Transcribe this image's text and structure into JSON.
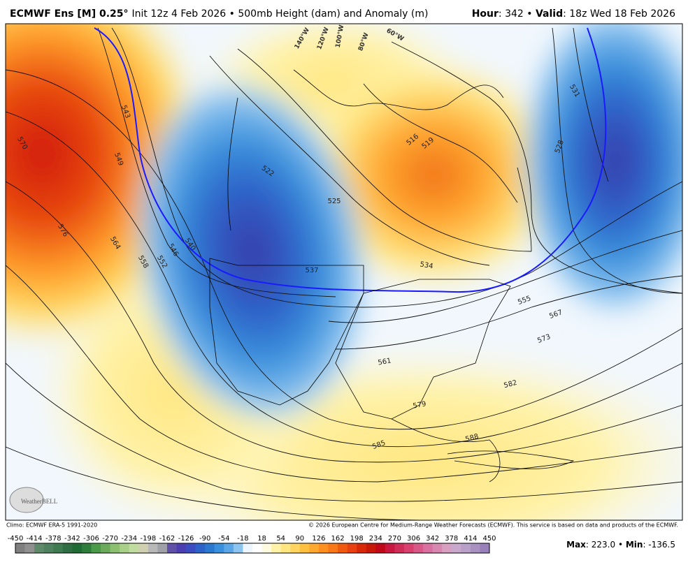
{
  "header": {
    "model": "ECMWF Ens [M] 0.25°",
    "description": "Init 12z 4 Feb 2026 • 500mb Height (dam) and Anomaly (m)",
    "hour_label": "Hour",
    "hour_value": ": 342 • ",
    "valid_label": "Valid",
    "valid_value": ": 18z Wed 18 Feb 2026"
  },
  "map": {
    "longitude_labels": [
      "140°W",
      "120°W",
      "100°W",
      "80°W",
      "60°W"
    ],
    "contour_labels": [
      570,
      576,
      543,
      549,
      564,
      558,
      552,
      546,
      540,
      522,
      525,
      537,
      534,
      531,
      528,
      555,
      567,
      573,
      561,
      582,
      579,
      585,
      588,
      519,
      516
    ],
    "logo": "WeatherBELL"
  },
  "footer": {
    "climo": "Climo: ECMWF ERA-5 1991-2020",
    "copyright": "© 2026 European Centre for Medium-Range Weather Forecasts (ECMWF). This service is based on data and products of the ECMWF."
  },
  "colorbar": {
    "ticks": [
      -450,
      -414,
      -378,
      -342,
      -306,
      -270,
      -234,
      -198,
      -162,
      -126,
      -90,
      -54,
      -18,
      18,
      54,
      90,
      126,
      162,
      198,
      234,
      270,
      306,
      342,
      378,
      414,
      450
    ],
    "colors": [
      "#7f7f7f",
      "#909090",
      "#5f8a6a",
      "#4f8060",
      "#3f7a50",
      "#2f6e42",
      "#1f6a35",
      "#2e7d3a",
      "#4a9a4a",
      "#6aaa5a",
      "#8cc070",
      "#a8d08a",
      "#c0dca0",
      "#d0d0b0",
      "#b8b8b8",
      "#a0a0a8",
      "#6050a8",
      "#4a3eb0",
      "#3b4cc0",
      "#2d62c8",
      "#2a78d0",
      "#3a90dc",
      "#5aa6e6",
      "#8cc4f0",
      "#eef6fd",
      "#ffffff",
      "#fffbe0",
      "#fff2a8",
      "#ffe680",
      "#ffd460",
      "#ffc040",
      "#ffa830",
      "#ff9020",
      "#f87818",
      "#f05a10",
      "#e84010",
      "#d82808",
      "#c81808",
      "#c00818",
      "#c81840",
      "#d02c58",
      "#d84070",
      "#d85888",
      "#d870a0",
      "#d888b0",
      "#d8a0c0",
      "#c8a8cc",
      "#b8a0c8",
      "#a890c0",
      "#9880b8"
    ]
  },
  "stats": {
    "max_label": "Max",
    "max_value": ": 223.0 • ",
    "min_label": "Min",
    "min_value": ": -136.5"
  }
}
